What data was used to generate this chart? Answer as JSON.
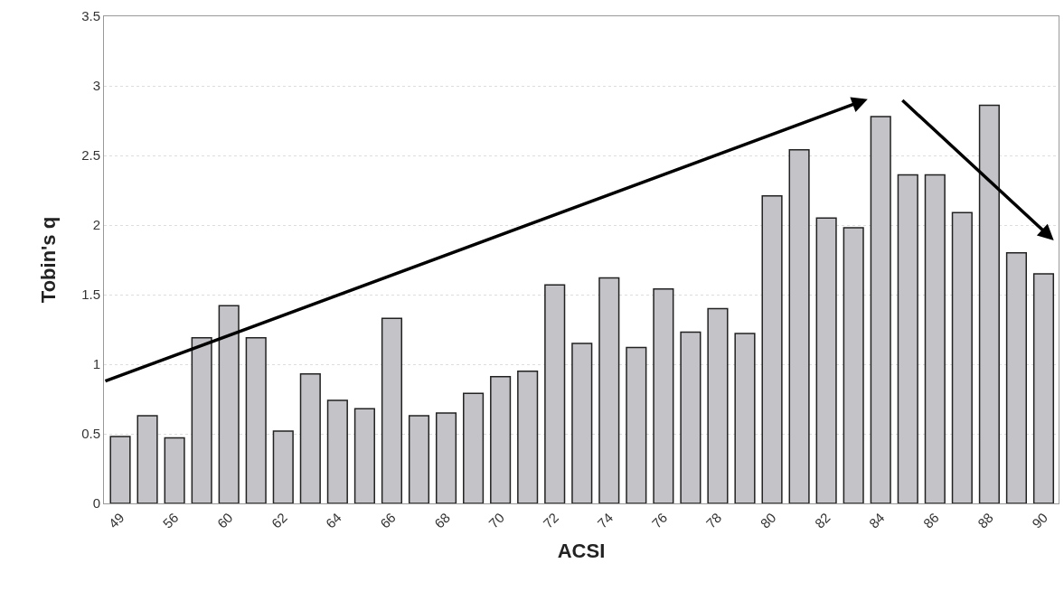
{
  "chart_data": {
    "type": "bar",
    "xlabel": "ACSI",
    "ylabel": "Tobin's q",
    "categories": [
      "49",
      null,
      "56",
      null,
      "60",
      null,
      "62",
      null,
      "64",
      null,
      "66",
      null,
      "68",
      null,
      "70",
      null,
      "72",
      null,
      "74",
      null,
      "76",
      null,
      "78",
      null,
      "80",
      null,
      "82",
      null,
      "84",
      null,
      "86",
      null,
      "88",
      null,
      "90"
    ],
    "values": [
      0.48,
      0.63,
      0.47,
      1.19,
      1.42,
      1.19,
      0.52,
      0.93,
      0.74,
      0.68,
      1.33,
      0.63,
      0.65,
      0.79,
      0.91,
      0.95,
      1.57,
      1.15,
      1.62,
      1.12,
      1.54,
      1.23,
      1.4,
      1.22,
      2.21,
      2.54,
      2.05,
      1.98,
      2.78,
      2.36,
      2.36,
      2.09,
      2.86,
      1.8,
      1.65
    ],
    "color": "#c4c4c8",
    "ylim": [
      0,
      3.5
    ],
    "yticks": [
      0,
      0.5,
      1,
      1.5,
      2,
      2.5,
      3,
      3.5
    ],
    "grid": "y"
  }
}
